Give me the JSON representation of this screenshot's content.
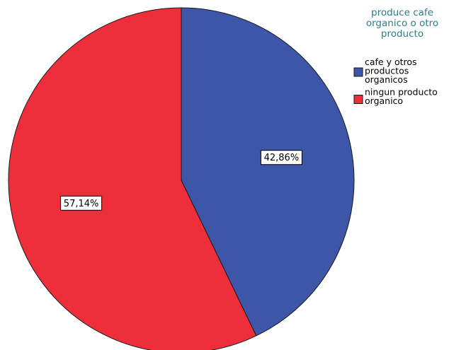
{
  "chart_data": {
    "type": "pie",
    "legend": {
      "title": "produce cafe organico o otro producto",
      "title_lines": [
        "produce cafe",
        "organico o otro",
        "producto"
      ],
      "position": "top-right",
      "title_color": "#2e7d8c"
    },
    "slices": [
      {
        "name": "cafe y otros productos organicos",
        "legend_lines": [
          "cafe y otros",
          "productos",
          "organicos"
        ],
        "value": 42.86,
        "label": "42,86%",
        "color": "#3d56a8"
      },
      {
        "name": "ningun producto organico",
        "legend_lines": [
          "ningun producto",
          "organico"
        ],
        "value": 57.14,
        "label": "57,14%",
        "color": "#ee2e3b"
      }
    ],
    "start_angle_deg": 0,
    "direction": "clockwise"
  }
}
